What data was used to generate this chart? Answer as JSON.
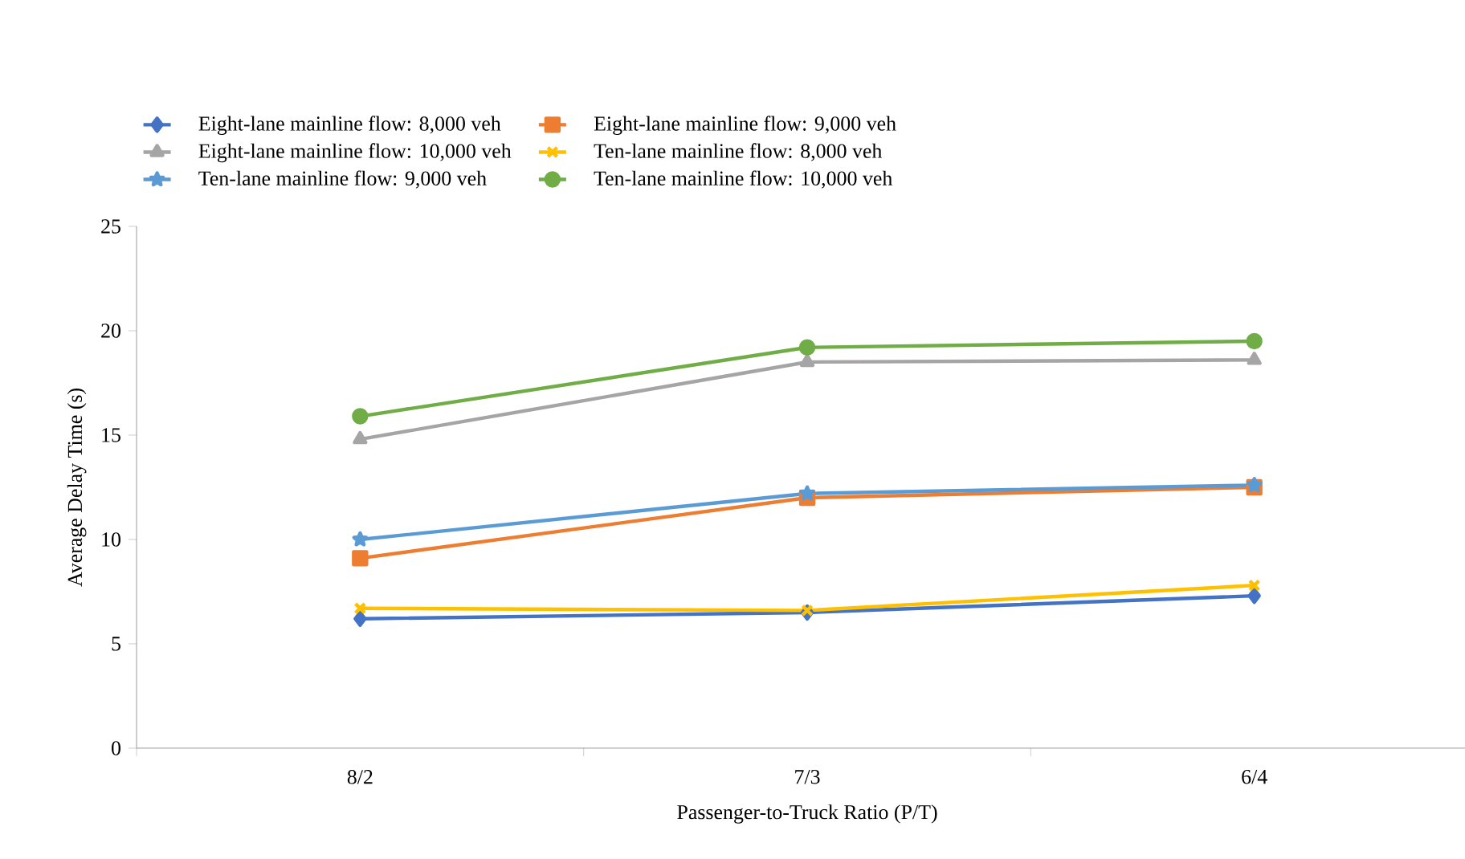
{
  "chart_data": {
    "type": "line",
    "xlabel": "Passenger-to-Truck Ratio (P/T)",
    "ylabel": "Average Delay Time (s)",
    "categories": [
      "8/2",
      "7/3",
      "6/4"
    ],
    "ylim": [
      0,
      25
    ],
    "yticks": [
      0,
      5,
      10,
      15,
      20,
      25
    ],
    "grid": false,
    "legend": "top",
    "series": [
      {
        "name": "Eight-lane mainline flow: 8,000 veh",
        "color": "#4472c4",
        "marker": "diamond",
        "values": [
          6.2,
          6.5,
          7.3
        ]
      },
      {
        "name": "Eight-lane mainline flow: 9,000 veh",
        "color": "#ed7d31",
        "marker": "square",
        "values": [
          9.1,
          12.0,
          12.5
        ]
      },
      {
        "name": "Eight-lane mainline flow: 10,000 veh",
        "color": "#a5a5a5",
        "marker": "triangle",
        "values": [
          14.8,
          18.5,
          18.6
        ]
      },
      {
        "name": "Ten-lane mainline flow: 8,000 veh",
        "color": "#ffc000",
        "marker": "cross",
        "values": [
          6.7,
          6.6,
          7.8
        ]
      },
      {
        "name": "Ten-lane mainline flow: 9,000 veh",
        "color": "#5b9bd5",
        "marker": "star",
        "values": [
          10.0,
          12.2,
          12.6
        ]
      },
      {
        "name": "Ten-lane mainline flow: 10,000 veh",
        "color": "#70ad47",
        "marker": "circle",
        "values": [
          15.9,
          19.2,
          19.5
        ]
      }
    ]
  }
}
